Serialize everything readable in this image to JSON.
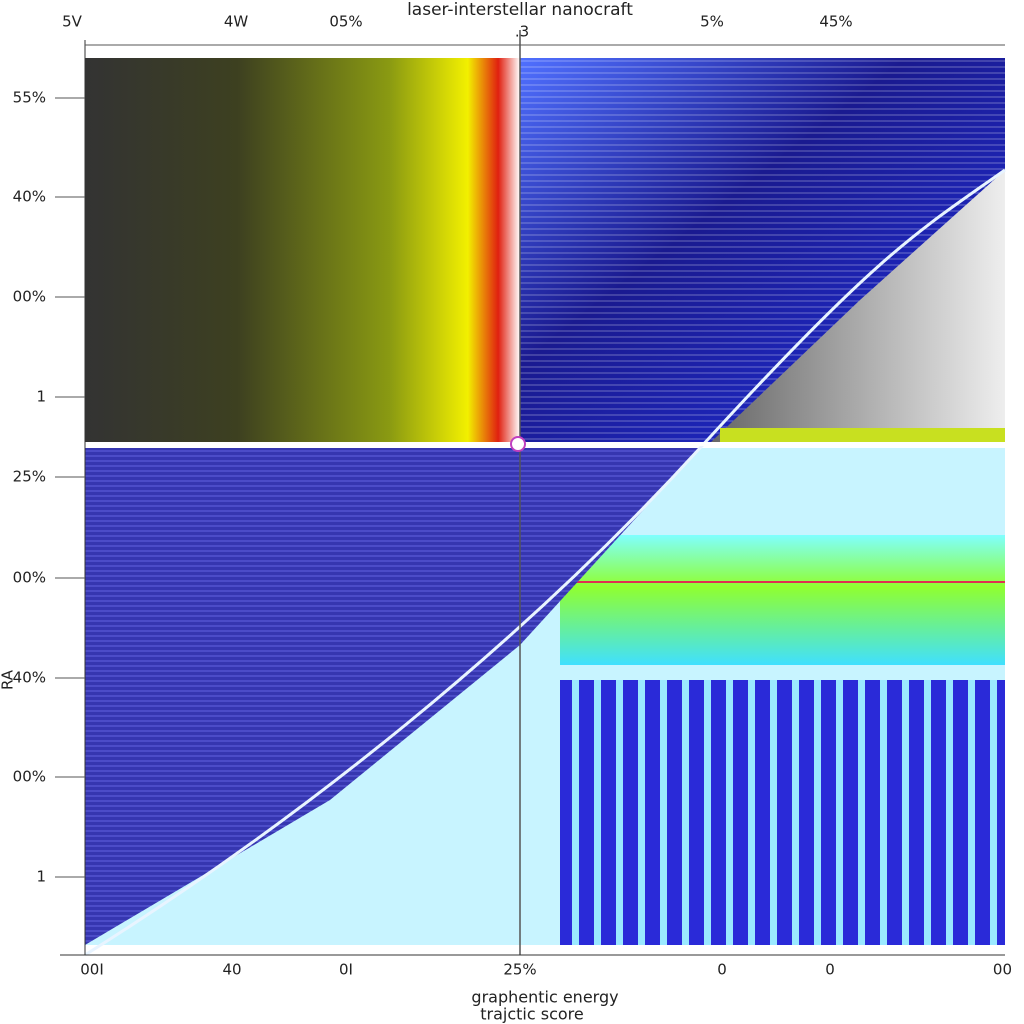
{
  "title": "laser-interstellar nanocraft",
  "top_labels": [
    "5V",
    "4W",
    "05%",
    ".3",
    "5%",
    "45%"
  ],
  "left_labels": [
    "55%",
    "40%",
    "00%",
    "1",
    "25%",
    "00%",
    "40%",
    "00%",
    "1"
  ],
  "left_axis_label": "RA",
  "bottom_labels": [
    "00I",
    "40",
    "0I",
    "25%",
    "0",
    "0",
    "00"
  ],
  "x_axis_label": [
    "graphentic energy",
    "trajctic score"
  ]
}
